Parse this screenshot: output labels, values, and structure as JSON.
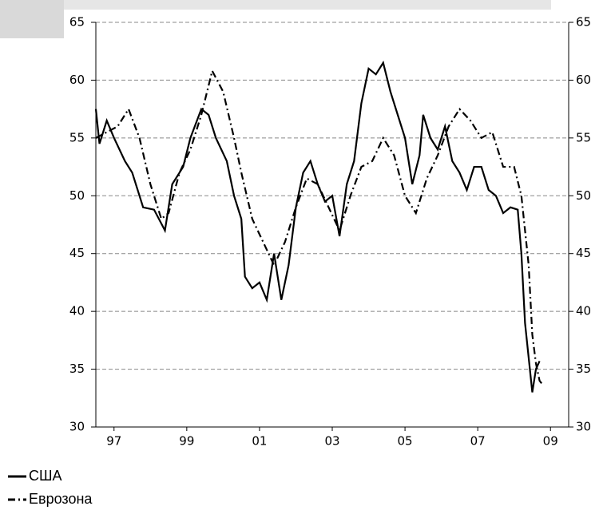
{
  "chart_data": {
    "type": "line",
    "series": [
      {
        "name": "США",
        "color": "#000000",
        "dash": "solid",
        "x": [
          1997.0,
          1997.1,
          1997.3,
          1997.5,
          1997.8,
          1998.0,
          1998.3,
          1998.6,
          1998.9,
          1999.1,
          1999.4,
          1999.6,
          1999.9,
          2000.1,
          2000.3,
          2000.6,
          2000.8,
          2001.0,
          2001.1,
          2001.3,
          2001.5,
          2001.7,
          2001.9,
          2002.1,
          2002.3,
          2002.5,
          2002.7,
          2002.9,
          2003.1,
          2003.3,
          2003.5,
          2003.7,
          2003.9,
          2004.1,
          2004.3,
          2004.5,
          2004.7,
          2004.9,
          2005.1,
          2005.3,
          2005.5,
          2005.7,
          2005.9,
          2006.0,
          2006.2,
          2006.4,
          2006.6,
          2006.8,
          2007.0,
          2007.2,
          2007.4,
          2007.6,
          2007.8,
          2008.0,
          2008.2,
          2008.4,
          2008.6,
          2008.7,
          2008.8,
          2008.9,
          2009.0,
          2009.1,
          2009.2
        ],
        "values": [
          57.5,
          54.5,
          56.5,
          55,
          53,
          52,
          49,
          48.8,
          47,
          51,
          52.5,
          55,
          57.5,
          57,
          55,
          53,
          50,
          48,
          43,
          42,
          42.5,
          41,
          45,
          41,
          44,
          49,
          52,
          53,
          51,
          49.5,
          50,
          46.5,
          51,
          53,
          58,
          61,
          60.5,
          61.5,
          59,
          57,
          55,
          51,
          53.5,
          57,
          55,
          54,
          56,
          53,
          52,
          50.5,
          52.5,
          52.5,
          50.5,
          50,
          48.5,
          49,
          48.8,
          45,
          39,
          36,
          33,
          35,
          35.7
        ]
      },
      {
        "name": "Еврозона",
        "color": "#000000",
        "dash": "dashed",
        "x": [
          1997.0,
          1997.3,
          1997.6,
          1997.9,
          1998.2,
          1998.5,
          1998.8,
          1999.0,
          1999.3,
          1999.6,
          1999.9,
          2000.2,
          2000.5,
          2000.8,
          2001.0,
          2001.3,
          2001.6,
          2001.9,
          2002.2,
          2002.5,
          2002.8,
          2003.1,
          2003.4,
          2003.7,
          2004.0,
          2004.3,
          2004.6,
          2004.9,
          2005.2,
          2005.5,
          2005.8,
          2006.1,
          2006.4,
          2006.7,
          2007.0,
          2007.3,
          2007.6,
          2007.9,
          2008.2,
          2008.5,
          2008.7,
          2008.9,
          2009.0,
          2009.1,
          2009.2,
          2009.3
        ],
        "values": [
          55,
          55.5,
          56,
          57.5,
          55,
          51,
          48,
          48.5,
          52,
          54,
          57,
          60.8,
          59,
          55,
          52,
          48,
          46,
          44,
          46,
          49,
          51.5,
          51,
          49,
          47,
          50,
          52.5,
          53,
          55,
          53.5,
          50,
          48.5,
          51.5,
          53.5,
          56,
          57.5,
          56.5,
          55,
          55.5,
          52.5,
          52.5,
          50,
          44,
          38,
          35.5,
          34,
          33.6
        ]
      }
    ],
    "xlim": [
      1997,
      2010
    ],
    "xticks": [
      {
        "value": 1997.5,
        "label": "97"
      },
      {
        "value": 1999.5,
        "label": "99"
      },
      {
        "value": 2001.5,
        "label": "01"
      },
      {
        "value": 2003.5,
        "label": "03"
      },
      {
        "value": 2005.5,
        "label": "05"
      },
      {
        "value": 2007.5,
        "label": "07"
      },
      {
        "value": 2009.5,
        "label": "09"
      }
    ],
    "ylim": [
      30,
      65
    ],
    "yticks": [
      30,
      35,
      40,
      45,
      50,
      55,
      60,
      65
    ],
    "y2lim": [
      30,
      65
    ],
    "y2ticks": [
      30,
      35,
      40,
      45,
      50,
      55,
      60,
      65
    ],
    "grid": true,
    "legend": "bottom-left"
  }
}
